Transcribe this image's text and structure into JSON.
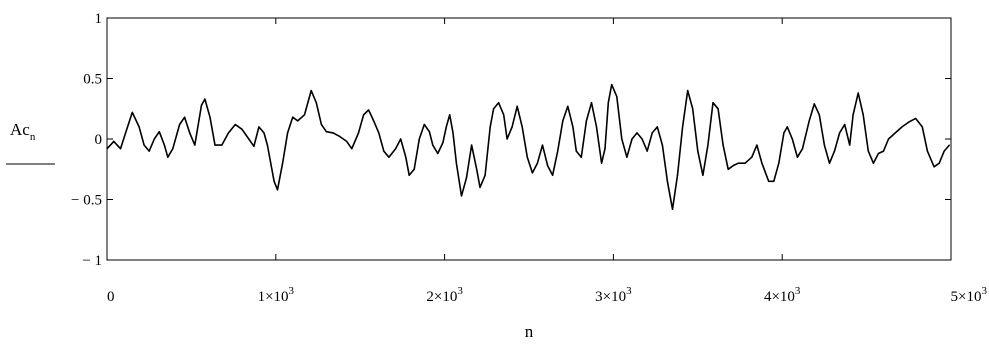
{
  "chart_data": {
    "type": "line",
    "xlabel": "n",
    "ylabel": "Ac",
    "ylabel_subscript": "n",
    "xlim": [
      0,
      5000
    ],
    "ylim": [
      -1,
      1
    ],
    "grid": false,
    "x_ticks": [
      {
        "value": 0,
        "base": "0",
        "exp": ""
      },
      {
        "value": 1000,
        "base": "1×10",
        "exp": "3"
      },
      {
        "value": 2000,
        "base": "2×10",
        "exp": "3"
      },
      {
        "value": 3000,
        "base": "3×10",
        "exp": "3"
      },
      {
        "value": 4000,
        "base": "4×10",
        "exp": "3"
      },
      {
        "value": 5000,
        "base": "5×10",
        "exp": "3"
      }
    ],
    "y_ticks": [
      {
        "value": 1,
        "label": "1"
      },
      {
        "value": 0.5,
        "label": "0.5"
      },
      {
        "value": 0,
        "label": "0"
      },
      {
        "value": -0.5,
        "label": "− 0.5"
      },
      {
        "value": -1,
        "label": "− 1"
      }
    ],
    "series": [
      {
        "color": "#000000",
        "points": [
          [
            0,
            -0.08
          ],
          [
            40,
            -0.02
          ],
          [
            80,
            -0.08
          ],
          [
            110,
            0.05
          ],
          [
            150,
            0.22
          ],
          [
            190,
            0.1
          ],
          [
            220,
            -0.05
          ],
          [
            250,
            -0.1
          ],
          [
            280,
            0.0
          ],
          [
            310,
            0.06
          ],
          [
            340,
            -0.05
          ],
          [
            360,
            -0.15
          ],
          [
            390,
            -0.08
          ],
          [
            430,
            0.12
          ],
          [
            460,
            0.18
          ],
          [
            490,
            0.05
          ],
          [
            520,
            -0.05
          ],
          [
            560,
            0.28
          ],
          [
            580,
            0.33
          ],
          [
            610,
            0.18
          ],
          [
            640,
            -0.05
          ],
          [
            680,
            -0.05
          ],
          [
            720,
            0.05
          ],
          [
            760,
            0.12
          ],
          [
            800,
            0.08
          ],
          [
            840,
            0.0
          ],
          [
            870,
            -0.06
          ],
          [
            900,
            0.1
          ],
          [
            930,
            0.05
          ],
          [
            950,
            -0.05
          ],
          [
            990,
            -0.35
          ],
          [
            1010,
            -0.42
          ],
          [
            1040,
            -0.2
          ],
          [
            1070,
            0.05
          ],
          [
            1100,
            0.18
          ],
          [
            1130,
            0.15
          ],
          [
            1170,
            0.2
          ],
          [
            1210,
            0.4
          ],
          [
            1240,
            0.3
          ],
          [
            1270,
            0.12
          ],
          [
            1300,
            0.06
          ],
          [
            1340,
            0.05
          ],
          [
            1380,
            0.02
          ],
          [
            1420,
            -0.02
          ],
          [
            1450,
            -0.08
          ],
          [
            1490,
            0.05
          ],
          [
            1520,
            0.2
          ],
          [
            1550,
            0.24
          ],
          [
            1580,
            0.15
          ],
          [
            1610,
            0.05
          ],
          [
            1640,
            -0.1
          ],
          [
            1670,
            -0.15
          ],
          [
            1710,
            -0.08
          ],
          [
            1740,
            0.0
          ],
          [
            1770,
            -0.15
          ],
          [
            1790,
            -0.3
          ],
          [
            1820,
            -0.25
          ],
          [
            1850,
            0.0
          ],
          [
            1880,
            0.12
          ],
          [
            1910,
            0.06
          ],
          [
            1930,
            -0.05
          ],
          [
            1960,
            -0.12
          ],
          [
            1990,
            -0.03
          ],
          [
            2010,
            0.1
          ],
          [
            2030,
            0.2
          ],
          [
            2050,
            0.05
          ],
          [
            2070,
            -0.2
          ],
          [
            2100,
            -0.47
          ],
          [
            2130,
            -0.32
          ],
          [
            2160,
            -0.05
          ],
          [
            2190,
            -0.25
          ],
          [
            2210,
            -0.4
          ],
          [
            2240,
            -0.3
          ],
          [
            2270,
            0.1
          ],
          [
            2290,
            0.25
          ],
          [
            2320,
            0.3
          ],
          [
            2350,
            0.2
          ],
          [
            2370,
            0.0
          ],
          [
            2400,
            0.1
          ],
          [
            2430,
            0.27
          ],
          [
            2460,
            0.1
          ],
          [
            2490,
            -0.15
          ],
          [
            2520,
            -0.28
          ],
          [
            2550,
            -0.2
          ],
          [
            2580,
            -0.05
          ],
          [
            2610,
            -0.22
          ],
          [
            2640,
            -0.3
          ],
          [
            2670,
            -0.1
          ],
          [
            2700,
            0.15
          ],
          [
            2730,
            0.27
          ],
          [
            2760,
            0.1
          ],
          [
            2780,
            -0.1
          ],
          [
            2810,
            -0.15
          ],
          [
            2840,
            0.15
          ],
          [
            2870,
            0.3
          ],
          [
            2900,
            0.1
          ],
          [
            2930,
            -0.2
          ],
          [
            2950,
            -0.08
          ],
          [
            2970,
            0.3
          ],
          [
            2990,
            0.45
          ],
          [
            3020,
            0.35
          ],
          [
            3050,
            0.0
          ],
          [
            3080,
            -0.15
          ],
          [
            3110,
            0.0
          ],
          [
            3140,
            0.05
          ],
          [
            3170,
            0.0
          ],
          [
            3200,
            -0.1
          ],
          [
            3230,
            0.05
          ],
          [
            3260,
            0.1
          ],
          [
            3290,
            -0.05
          ],
          [
            3320,
            -0.35
          ],
          [
            3350,
            -0.58
          ],
          [
            3380,
            -0.3
          ],
          [
            3410,
            0.1
          ],
          [
            3440,
            0.4
          ],
          [
            3470,
            0.25
          ],
          [
            3500,
            -0.1
          ],
          [
            3530,
            -0.3
          ],
          [
            3560,
            -0.05
          ],
          [
            3590,
            0.3
          ],
          [
            3620,
            0.25
          ],
          [
            3650,
            -0.05
          ],
          [
            3680,
            -0.25
          ],
          [
            3710,
            -0.22
          ],
          [
            3740,
            -0.2
          ],
          [
            3780,
            -0.2
          ],
          [
            3820,
            -0.15
          ],
          [
            3850,
            -0.05
          ],
          [
            3880,
            -0.2
          ],
          [
            3920,
            -0.35
          ],
          [
            3950,
            -0.35
          ],
          [
            3980,
            -0.2
          ],
          [
            4010,
            0.05
          ],
          [
            4030,
            0.1
          ],
          [
            4060,
            0.0
          ],
          [
            4090,
            -0.15
          ],
          [
            4120,
            -0.08
          ],
          [
            4160,
            0.15
          ],
          [
            4190,
            0.29
          ],
          [
            4220,
            0.2
          ],
          [
            4250,
            -0.05
          ],
          [
            4280,
            -0.2
          ],
          [
            4310,
            -0.1
          ],
          [
            4340,
            0.05
          ],
          [
            4370,
            0.12
          ],
          [
            4400,
            -0.05
          ],
          [
            4420,
            0.2
          ],
          [
            4450,
            0.38
          ],
          [
            4480,
            0.2
          ],
          [
            4510,
            -0.1
          ],
          [
            4540,
            -0.2
          ],
          [
            4570,
            -0.12
          ],
          [
            4600,
            -0.1
          ],
          [
            4630,
            0.0
          ],
          [
            4670,
            0.05
          ],
          [
            4710,
            0.1
          ],
          [
            4750,
            0.14
          ],
          [
            4790,
            0.17
          ],
          [
            4830,
            0.1
          ],
          [
            4860,
            -0.1
          ],
          [
            4900,
            -0.23
          ],
          [
            4930,
            -0.2
          ],
          [
            4960,
            -0.1
          ],
          [
            4990,
            -0.05
          ]
        ]
      }
    ]
  }
}
